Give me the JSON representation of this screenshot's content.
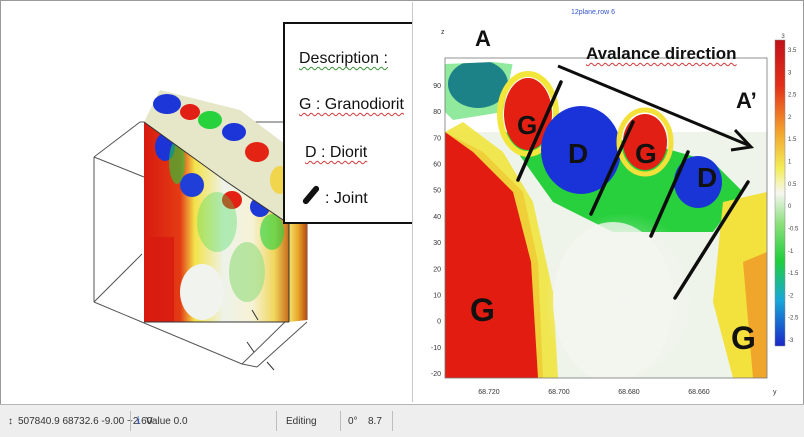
{
  "legend": {
    "title": "Description :",
    "granodiorit": "G : Granodiorit",
    "diorit": "D : Diorit",
    "joint": ": Joint"
  },
  "section": {
    "title": "12plane,row 6",
    "z_label": "z",
    "y_label": "y",
    "avalanche_label": "Avalance direction",
    "point_a": "A",
    "point_a_prime": "A’",
    "z_ticks": [
      "90",
      "80",
      "70",
      "60",
      "50",
      "40",
      "30",
      "20",
      "10",
      "0",
      "-10",
      "-20"
    ],
    "y_ticks": [
      "68.720",
      "68.700",
      "68.680",
      "68.660"
    ],
    "colorbar_ticks": [
      "3.5",
      "3",
      "2.5",
      "2",
      "1.5",
      "1",
      "0.5",
      "0",
      "-0.5",
      "-1",
      "-1.5",
      "-2",
      "-2.5",
      "-3"
    ],
    "colorbar_top": "3",
    "rock_labels": [
      {
        "text": "G"
      },
      {
        "text": "D"
      },
      {
        "text": "G"
      },
      {
        "text": "D"
      },
      {
        "text": "G"
      },
      {
        "text": "G"
      }
    ]
  },
  "statusbar": {
    "coords": "507840.9 68732.6 -9.00 ~2.60",
    "value": "Value 0.0",
    "mode": "Editing",
    "angle": "0°",
    "zoom": "8.7"
  },
  "colors": {
    "red": "#e01b12",
    "blue": "#1733d8",
    "green": "#1fd23a",
    "yellow": "#f3e83a",
    "white": "#f4f7f1"
  }
}
